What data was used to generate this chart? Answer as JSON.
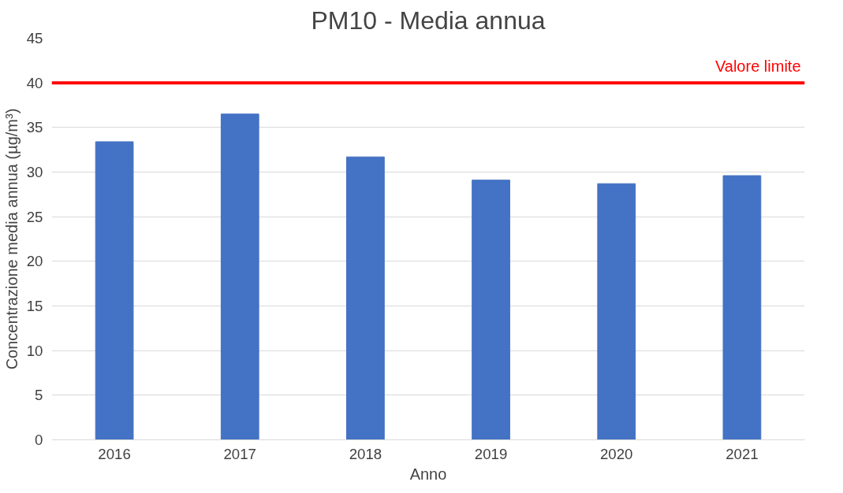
{
  "chart_data": {
    "type": "bar",
    "title": "PM10 - Media annua",
    "xlabel": "Anno",
    "ylabel": "Concentrazione media annua (µg/m³)",
    "categories": [
      "2016",
      "2017",
      "2018",
      "2019",
      "2020",
      "2021"
    ],
    "values": [
      33.4,
      36.5,
      31.7,
      29.1,
      28.7,
      29.6
    ],
    "color": "#4472c4",
    "ylim": [
      0,
      45
    ],
    "yticks": [
      0,
      5,
      10,
      15,
      20,
      25,
      30,
      35,
      40,
      45
    ],
    "grid": "y",
    "ref_lines": [
      {
        "axis": "y",
        "value": 40,
        "label": "Valore limite",
        "color": "#ff0000"
      }
    ]
  }
}
